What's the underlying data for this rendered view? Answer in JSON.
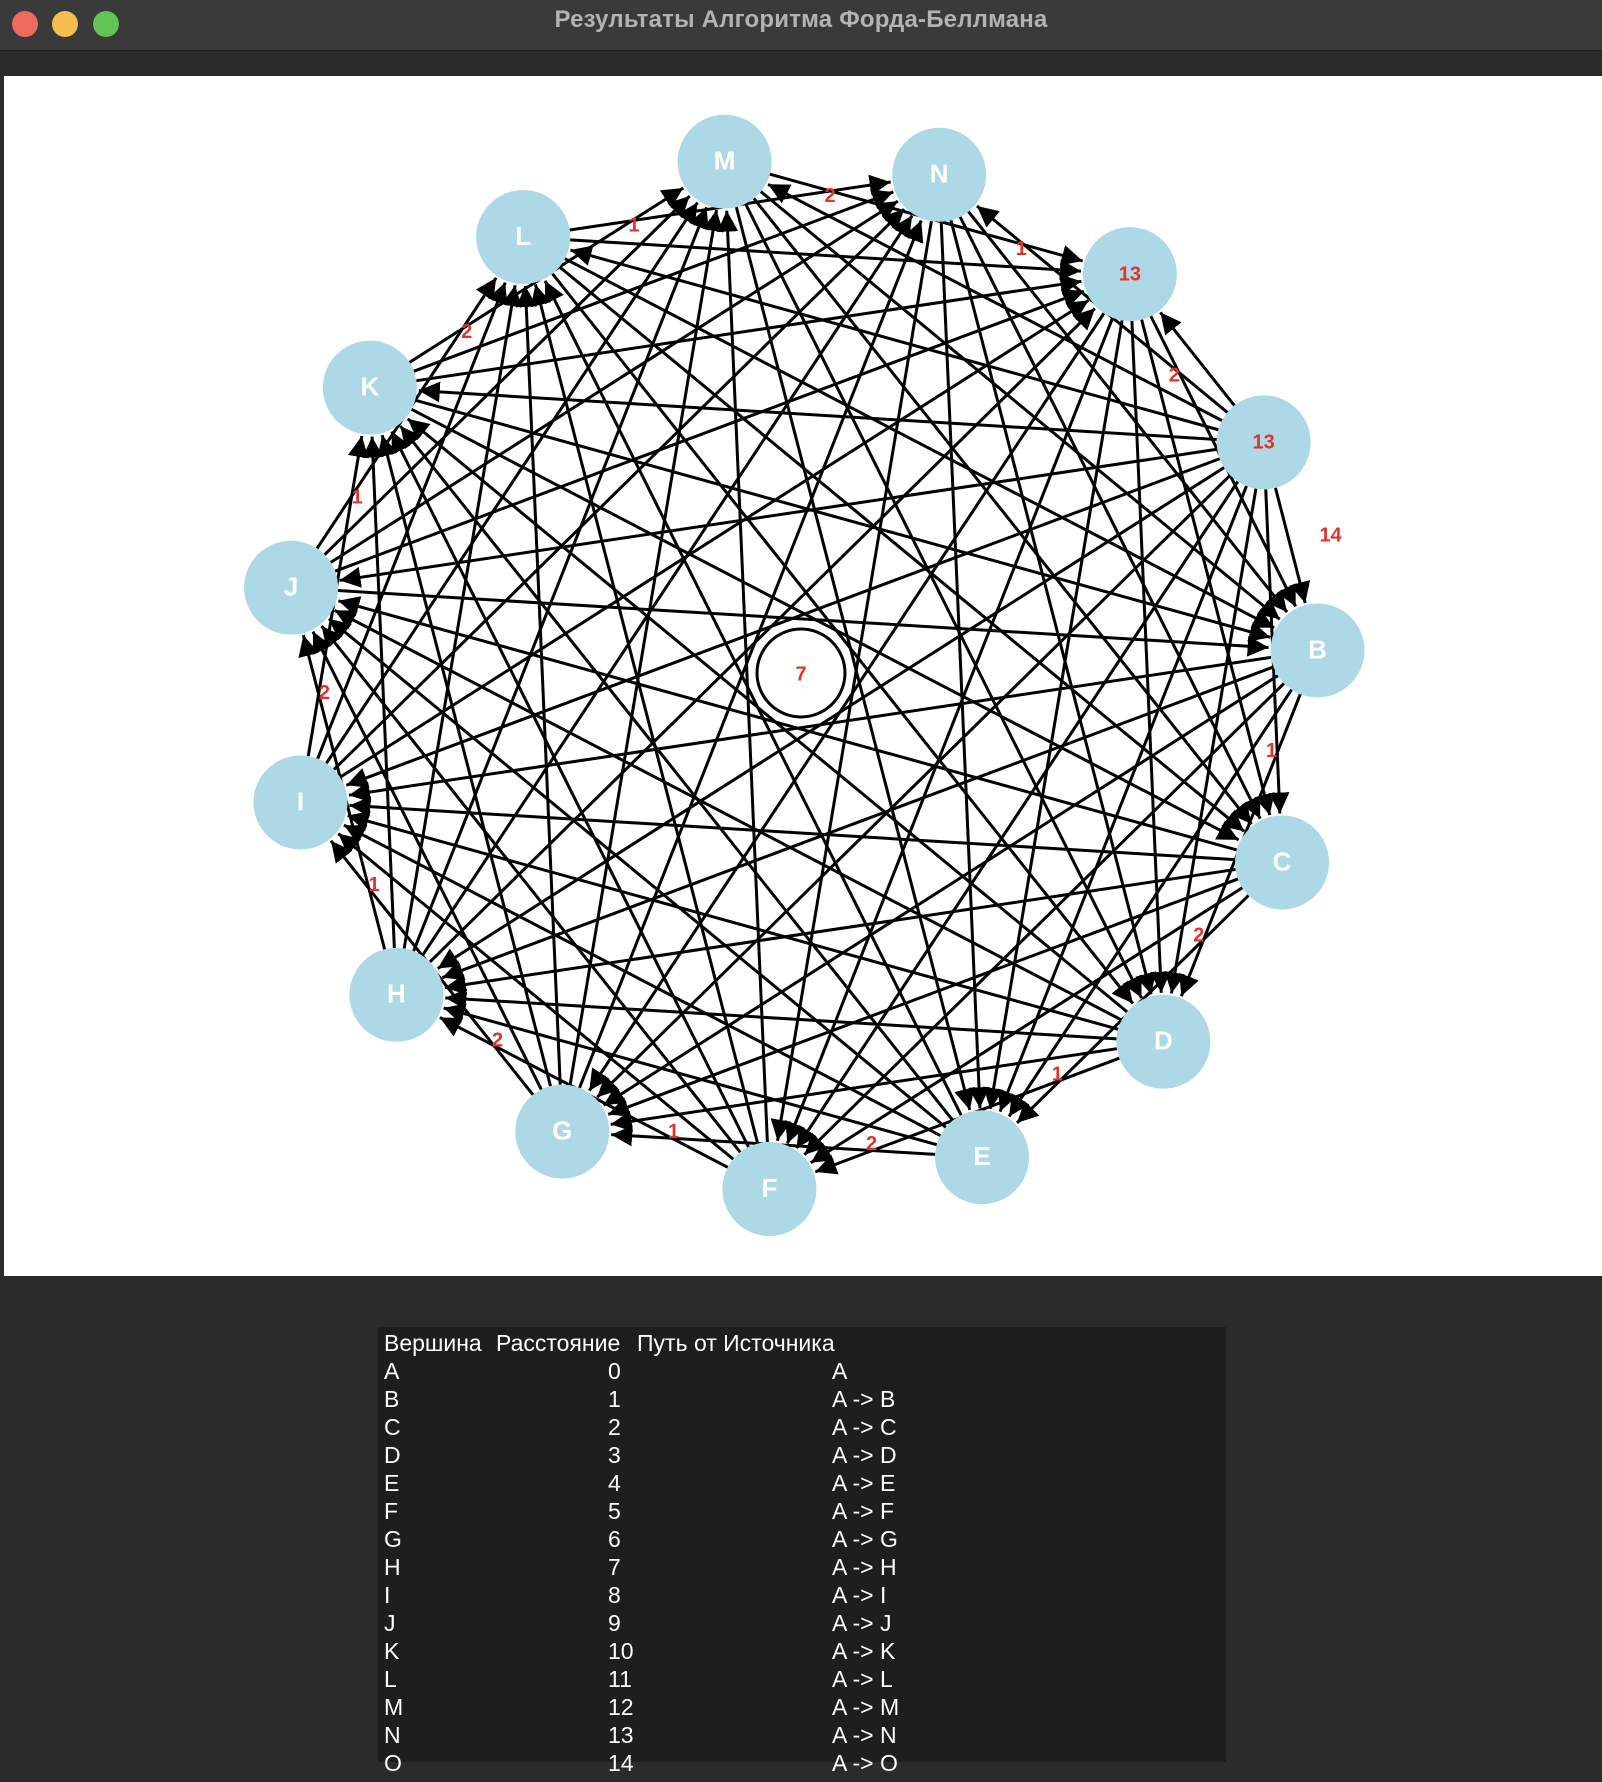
{
  "window": {
    "title": "Результаты Алгоритма Форда-Беллмана"
  },
  "graph": {
    "node_color": "#add8e6",
    "edge_color": "#000000",
    "weight_color": "#e0332b",
    "center_label": "7",
    "nodes": [
      {
        "id": "B",
        "label": "B"
      },
      {
        "id": "C",
        "label": "C"
      },
      {
        "id": "D",
        "label": "D"
      },
      {
        "id": "E",
        "label": "E"
      },
      {
        "id": "F",
        "label": "F"
      },
      {
        "id": "G",
        "label": "G"
      },
      {
        "id": "H",
        "label": "H"
      },
      {
        "id": "I",
        "label": "I"
      },
      {
        "id": "J",
        "label": "J"
      },
      {
        "id": "K",
        "label": "K"
      },
      {
        "id": "L",
        "label": "L"
      },
      {
        "id": "M",
        "label": "M"
      },
      {
        "id": "N",
        "label": "N"
      },
      {
        "id": "O",
        "label": "13"
      },
      {
        "id": "A",
        "label": "13"
      }
    ],
    "weights_outer": [
      "1",
      "2",
      "1",
      "2",
      "1",
      "2",
      "1",
      "2",
      "1",
      "2",
      "1",
      "2",
      "1",
      "2",
      "14"
    ]
  },
  "results": {
    "headers": [
      "Вершина",
      "Расстояние",
      "Путь от Источника"
    ],
    "rows": [
      [
        "A",
        "0",
        "A"
      ],
      [
        "B",
        "1",
        "A -> B"
      ],
      [
        "C",
        "2",
        "A -> C"
      ],
      [
        "D",
        "3",
        "A -> D"
      ],
      [
        "E",
        "4",
        "A -> E"
      ],
      [
        "F",
        "5",
        "A -> F"
      ],
      [
        "G",
        "6",
        "A -> G"
      ],
      [
        "H",
        "7",
        "A -> H"
      ],
      [
        "I",
        "8",
        "A -> I"
      ],
      [
        "J",
        "9",
        "A -> J"
      ],
      [
        "K",
        "10",
        "A -> K"
      ],
      [
        "L",
        "11",
        "A -> L"
      ],
      [
        "M",
        "12",
        "A -> M"
      ],
      [
        "N",
        "13",
        "A -> N"
      ],
      [
        "O",
        "14",
        "A -> O"
      ]
    ]
  }
}
